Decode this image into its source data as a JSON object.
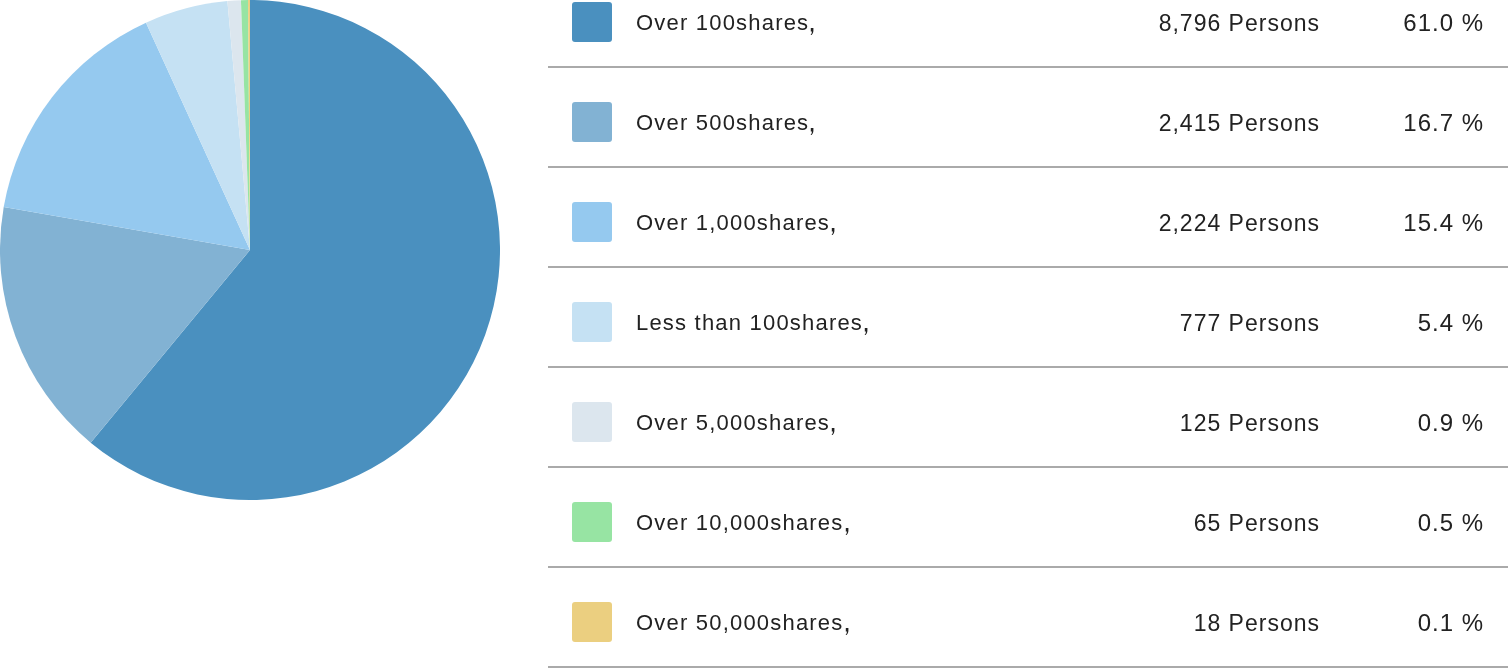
{
  "chart_data": {
    "type": "pie",
    "categories": [
      "Over 100shares",
      "Over 500shares",
      "Over 1,000shares",
      "Less than 100shares",
      "Over 5,000shares",
      "Over 10,000shares",
      "Over 50,000shares"
    ],
    "values": [
      8796,
      2415,
      2224,
      777,
      125,
      65,
      18
    ],
    "colors": [
      "#4a90bf",
      "#82b2d3",
      "#95c9ef",
      "#c5e1f3",
      "#dce6ee",
      "#97e4a3",
      "#ebcf80"
    ],
    "value_labels": [
      "8,796 Persons",
      "2,415 Persons",
      "2,224 Persons",
      "777 Persons",
      "125 Persons",
      "65 Persons",
      "18 Persons"
    ],
    "annotations": [
      "61.0 %",
      "16.7 %",
      "15.4 %",
      "5.4 %",
      "0.9 %",
      "0.5 %",
      "0.1 %"
    ],
    "legend": "right"
  }
}
